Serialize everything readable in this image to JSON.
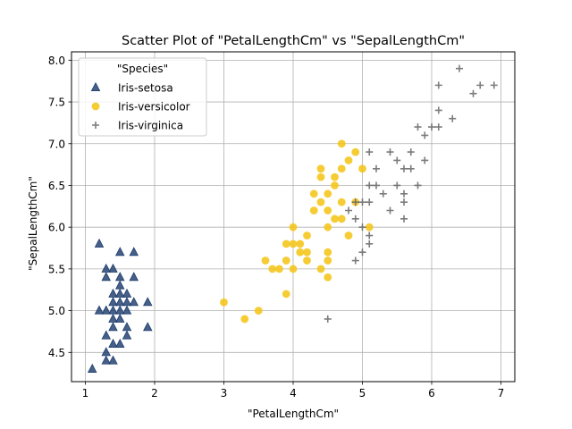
{
  "chart_data": {
    "type": "scatter",
    "title": "Scatter Plot of \"PetalLengthCm\" vs \"SepalLengthCm\"",
    "xlabel": "\"PetalLengthCm\"",
    "ylabel": "\"SepalLengthCm\"",
    "xlim": [
      0.8,
      7.2
    ],
    "ylim": [
      4.15,
      8.1
    ],
    "xticks": [
      1,
      2,
      3,
      4,
      5,
      6,
      7
    ],
    "yticks": [
      4.5,
      5.0,
      5.5,
      6.0,
      6.5,
      7.0,
      7.5,
      8.0
    ],
    "xtick_labels": [
      "1",
      "2",
      "3",
      "4",
      "5",
      "6",
      "7"
    ],
    "ytick_labels": [
      "4.5",
      "5.0",
      "5.5",
      "6.0",
      "6.5",
      "7.0",
      "7.5",
      "8.0"
    ],
    "grid": true,
    "legend": {
      "title": "\"Species\"",
      "placement": "upper-left"
    },
    "series": [
      {
        "name": "Iris-setosa",
        "marker": "triangle",
        "color": "#1f3d6e",
        "points": [
          [
            1.1,
            4.3
          ],
          [
            1.2,
            5.8
          ],
          [
            1.2,
            5.0
          ],
          [
            1.3,
            5.5
          ],
          [
            1.3,
            5.4
          ],
          [
            1.3,
            5.0
          ],
          [
            1.3,
            4.7
          ],
          [
            1.3,
            4.5
          ],
          [
            1.3,
            4.4
          ],
          [
            1.4,
            5.5
          ],
          [
            1.4,
            5.2
          ],
          [
            1.4,
            5.1
          ],
          [
            1.4,
            5.0
          ],
          [
            1.4,
            4.9
          ],
          [
            1.4,
            4.8
          ],
          [
            1.4,
            4.6
          ],
          [
            1.4,
            4.4
          ],
          [
            1.5,
            5.7
          ],
          [
            1.5,
            5.4
          ],
          [
            1.5,
            5.3
          ],
          [
            1.5,
            5.2
          ],
          [
            1.5,
            5.1
          ],
          [
            1.5,
            5.0
          ],
          [
            1.5,
            4.9
          ],
          [
            1.5,
            4.6
          ],
          [
            1.6,
            5.2
          ],
          [
            1.6,
            5.1
          ],
          [
            1.6,
            5.0
          ],
          [
            1.6,
            4.8
          ],
          [
            1.6,
            4.7
          ],
          [
            1.7,
            5.7
          ],
          [
            1.7,
            5.4
          ],
          [
            1.7,
            5.1
          ],
          [
            1.9,
            5.1
          ],
          [
            1.9,
            4.8
          ]
        ]
      },
      {
        "name": "Iris-versicolor",
        "marker": "circle",
        "color": "#f5c518",
        "points": [
          [
            3.0,
            5.1
          ],
          [
            3.3,
            4.9
          ],
          [
            3.5,
            5.0
          ],
          [
            3.6,
            5.6
          ],
          [
            3.7,
            5.5
          ],
          [
            3.8,
            5.5
          ],
          [
            3.9,
            5.8
          ],
          [
            3.9,
            5.6
          ],
          [
            3.9,
            5.2
          ],
          [
            4.0,
            6.0
          ],
          [
            4.0,
            5.8
          ],
          [
            4.0,
            5.5
          ],
          [
            4.1,
            5.8
          ],
          [
            4.1,
            5.7
          ],
          [
            4.2,
            5.9
          ],
          [
            4.2,
            5.7
          ],
          [
            4.2,
            5.6
          ],
          [
            4.3,
            6.4
          ],
          [
            4.3,
            6.2
          ],
          [
            4.4,
            6.7
          ],
          [
            4.4,
            6.6
          ],
          [
            4.4,
            6.3
          ],
          [
            4.4,
            5.5
          ],
          [
            4.5,
            6.4
          ],
          [
            4.5,
            6.2
          ],
          [
            4.5,
            6.0
          ],
          [
            4.5,
            5.7
          ],
          [
            4.5,
            5.6
          ],
          [
            4.5,
            5.4
          ],
          [
            4.6,
            6.6
          ],
          [
            4.6,
            6.5
          ],
          [
            4.6,
            6.1
          ],
          [
            4.7,
            7.0
          ],
          [
            4.7,
            6.7
          ],
          [
            4.7,
            6.3
          ],
          [
            4.7,
            6.1
          ],
          [
            4.8,
            6.8
          ],
          [
            4.8,
            5.9
          ],
          [
            4.9,
            6.9
          ],
          [
            4.9,
            6.3
          ],
          [
            5.0,
            6.7
          ],
          [
            5.1,
            6.0
          ]
        ]
      },
      {
        "name": "Iris-virginica",
        "marker": "plus",
        "color": "#6e6e6e",
        "points": [
          [
            4.5,
            4.9
          ],
          [
            4.8,
            6.2
          ],
          [
            4.9,
            6.3
          ],
          [
            4.9,
            6.1
          ],
          [
            4.9,
            5.6
          ],
          [
            5.0,
            6.3
          ],
          [
            5.0,
            6.0
          ],
          [
            5.0,
            5.7
          ],
          [
            5.1,
            6.9
          ],
          [
            5.1,
            6.5
          ],
          [
            5.1,
            6.3
          ],
          [
            5.1,
            5.9
          ],
          [
            5.1,
            5.8
          ],
          [
            5.2,
            6.7
          ],
          [
            5.2,
            6.5
          ],
          [
            5.3,
            6.4
          ],
          [
            5.4,
            6.9
          ],
          [
            5.4,
            6.2
          ],
          [
            5.5,
            6.8
          ],
          [
            5.5,
            6.5
          ],
          [
            5.6,
            6.7
          ],
          [
            5.6,
            6.4
          ],
          [
            5.6,
            6.3
          ],
          [
            5.6,
            6.1
          ],
          [
            5.7,
            6.9
          ],
          [
            5.7,
            6.7
          ],
          [
            5.8,
            7.2
          ],
          [
            5.8,
            6.5
          ],
          [
            5.9,
            7.1
          ],
          [
            5.9,
            6.8
          ],
          [
            6.0,
            7.2
          ],
          [
            6.1,
            7.7
          ],
          [
            6.1,
            7.4
          ],
          [
            6.1,
            7.2
          ],
          [
            6.3,
            7.3
          ],
          [
            6.4,
            7.9
          ],
          [
            6.6,
            7.6
          ],
          [
            6.7,
            7.7
          ],
          [
            6.9,
            7.7
          ]
        ]
      }
    ]
  }
}
